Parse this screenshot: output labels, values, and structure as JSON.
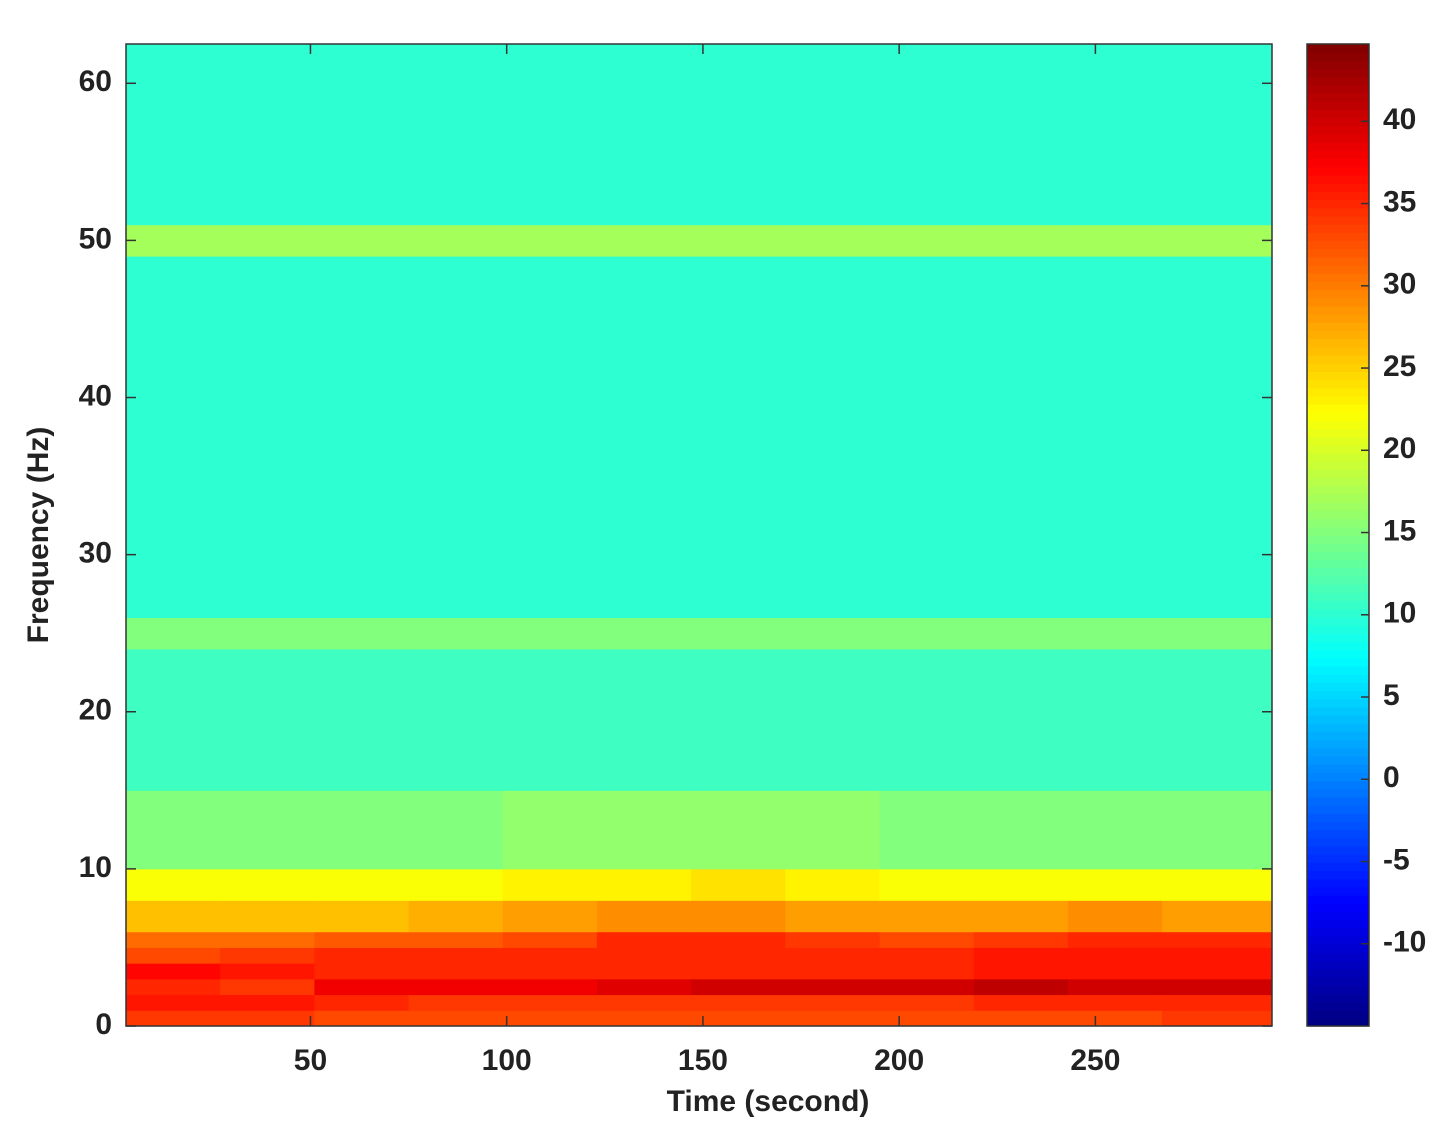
{
  "chart_data": {
    "type": "heatmap",
    "xlabel": "Time (second)",
    "ylabel": "Frequency (Hz)",
    "colormap": "jet",
    "x_edges": [
      3,
      27,
      51,
      75,
      99,
      123,
      147,
      171,
      195,
      219,
      243,
      267,
      295
    ],
    "y_edges": [
      0,
      1,
      2,
      3,
      4,
      5,
      6,
      8,
      10,
      15,
      24,
      26,
      49,
      51,
      62.5
    ],
    "z": [
      [
        34,
        34,
        33,
        33,
        33,
        33,
        33,
        33,
        33,
        33,
        33,
        34
      ],
      [
        36,
        36,
        35,
        34,
        34,
        34,
        34,
        34,
        34,
        35,
        35,
        35
      ],
      [
        35,
        34,
        38,
        38,
        38,
        39,
        40,
        40,
        40,
        41,
        40,
        40
      ],
      [
        37,
        36,
        35,
        35,
        35,
        35,
        35,
        35,
        35,
        36,
        36,
        36
      ],
      [
        33,
        34,
        35,
        35,
        35,
        35,
        35,
        35,
        35,
        36,
        36,
        36
      ],
      [
        31,
        31,
        32,
        32,
        33,
        35,
        35,
        34,
        33,
        34,
        35,
        35
      ],
      [
        26,
        26,
        26,
        27,
        28,
        29,
        29,
        28,
        28,
        28,
        29,
        28
      ],
      [
        22,
        22,
        22,
        22,
        23,
        23,
        24,
        23,
        22,
        22,
        22,
        22
      ],
      [
        15,
        15,
        15,
        15,
        16,
        16,
        16,
        16,
        15,
        15,
        15,
        15
      ],
      [
        11,
        11,
        11,
        11,
        11,
        11,
        11,
        11,
        11,
        11,
        11,
        11
      ],
      [
        15,
        15,
        15,
        15,
        15,
        15,
        15,
        15,
        15,
        15,
        15,
        15
      ],
      [
        10,
        10,
        10,
        10,
        10,
        10,
        10,
        10,
        10,
        10,
        10,
        10
      ],
      [
        17,
        17,
        17,
        17,
        17,
        17,
        17,
        17,
        17,
        17,
        17,
        17
      ],
      [
        10,
        10,
        10,
        10,
        10,
        10,
        10,
        10,
        10,
        10,
        10,
        10
      ]
    ],
    "xlim": [
      3,
      295
    ],
    "xticks": [
      50,
      100,
      150,
      200,
      250
    ],
    "ylim": [
      0,
      62.5
    ],
    "yticks": [
      0,
      10,
      20,
      30,
      40,
      50,
      60
    ],
    "clim": [
      -15,
      44.7
    ],
    "cticks": [
      -10,
      -5,
      0,
      5,
      10,
      15,
      20,
      25,
      30,
      35,
      40
    ]
  }
}
